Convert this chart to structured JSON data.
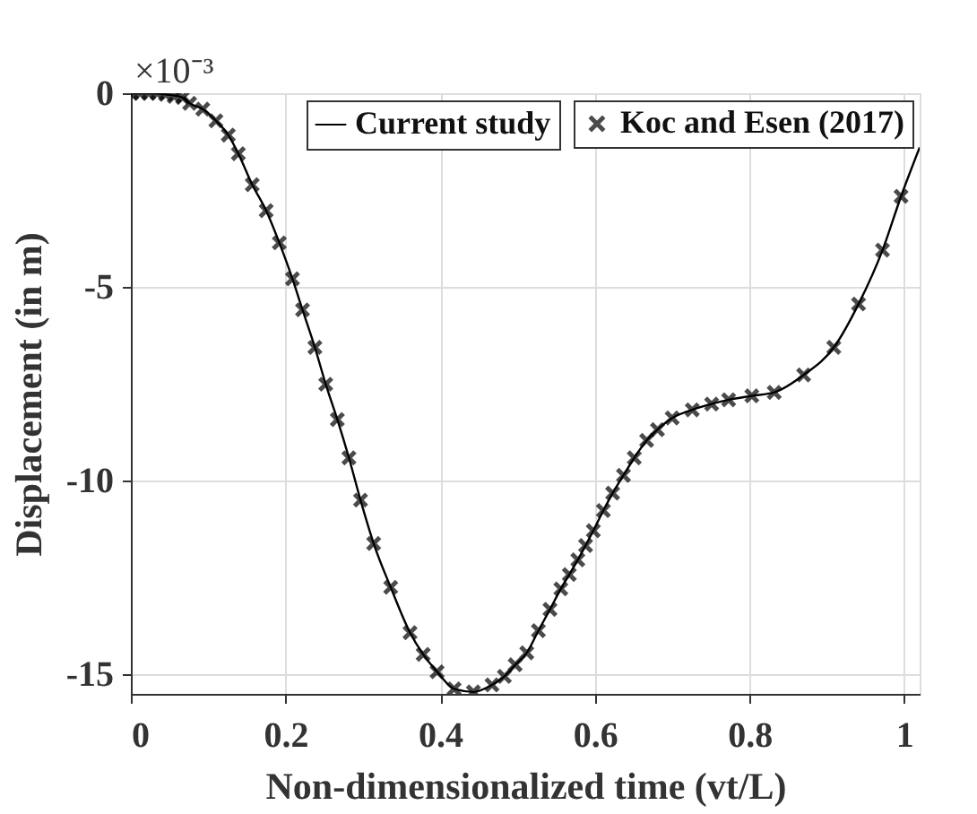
{
  "chart_data": {
    "type": "line",
    "xlabel": "Non-dimensionalized time (vt/L)",
    "ylabel": "Displacement (in m)",
    "annotations": [
      "×10⁻³"
    ],
    "xlim": [
      0,
      1.02
    ],
    "xticks": [
      0,
      0.2,
      0.4,
      0.6,
      0.8,
      1
    ],
    "ylim": [
      -15.5,
      0
    ],
    "yticks": [
      0,
      -5,
      -10,
      -15
    ],
    "grid": true,
    "legend": "top right",
    "series": [
      {
        "name": "Current study",
        "color": "#000000",
        "line_style": "solid",
        "marker": "none",
        "x": [
          0,
          0.023,
          0.045,
          0.067,
          0.076,
          0.093,
          0.11,
          0.126,
          0.139,
          0.157,
          0.175,
          0.192,
          0.209,
          0.222,
          0.238,
          0.252,
          0.267,
          0.282,
          0.297,
          0.314,
          0.336,
          0.361,
          0.378,
          0.396,
          0.418,
          0.443,
          0.467,
          0.483,
          0.497,
          0.512,
          0.527,
          0.542,
          0.556,
          0.567,
          0.578,
          0.588,
          0.598,
          0.611,
          0.623,
          0.637,
          0.651,
          0.667,
          0.681,
          0.7,
          0.726,
          0.751,
          0.773,
          0.803,
          0.832,
          0.87,
          0.909,
          0.941,
          0.972,
          0.996,
          1.02
        ],
        "values": [
          0,
          0,
          -0.03,
          -0.11,
          -0.26,
          -0.41,
          -0.71,
          -1.08,
          -1.56,
          -2.36,
          -3.03,
          -3.86,
          -4.79,
          -5.59,
          -6.56,
          -7.51,
          -8.42,
          -9.41,
          -10.5,
          -11.62,
          -12.75,
          -13.92,
          -14.48,
          -14.93,
          -15.37,
          -15.45,
          -15.27,
          -15.05,
          -14.75,
          -14.44,
          -13.87,
          -13.32,
          -12.79,
          -12.42,
          -12.04,
          -11.67,
          -11.29,
          -10.77,
          -10.32,
          -9.86,
          -9.41,
          -8.96,
          -8.68,
          -8.38,
          -8.17,
          -8.02,
          -7.91,
          -7.81,
          -7.72,
          -7.27,
          -6.56,
          -5.44,
          -4.05,
          -2.66,
          -1.4
        ]
      },
      {
        "name": "Koc and Esen (2017)",
        "type": "scatter",
        "color": "#000000",
        "marker": "cross",
        "x": [
          0.001,
          0.012,
          0.023,
          0.034,
          0.045,
          0.056,
          0.067,
          0.076,
          0.093,
          0.11,
          0.126,
          0.139,
          0.157,
          0.175,
          0.192,
          0.209,
          0.222,
          0.238,
          0.252,
          0.267,
          0.282,
          0.297,
          0.314,
          0.336,
          0.361,
          0.378,
          0.396,
          0.418,
          0.443,
          0.467,
          0.483,
          0.497,
          0.512,
          0.527,
          0.542,
          0.556,
          0.567,
          0.578,
          0.588,
          0.598,
          0.611,
          0.623,
          0.637,
          0.651,
          0.667,
          0.681,
          0.7,
          0.726,
          0.751,
          0.773,
          0.803,
          0.832,
          0.87,
          0.909,
          0.941,
          0.972,
          0.996
        ],
        "values": [
          0,
          0,
          0,
          0,
          -0.03,
          -0.08,
          -0.11,
          -0.26,
          -0.41,
          -0.71,
          -1.08,
          -1.56,
          -2.36,
          -3.03,
          -3.86,
          -4.79,
          -5.59,
          -6.56,
          -7.51,
          -8.42,
          -9.41,
          -10.5,
          -11.62,
          -12.75,
          -13.92,
          -14.48,
          -14.93,
          -15.37,
          -15.45,
          -15.27,
          -15.05,
          -14.75,
          -14.44,
          -13.87,
          -13.32,
          -12.79,
          -12.42,
          -12.04,
          -11.67,
          -11.29,
          -10.77,
          -10.32,
          -9.86,
          -9.41,
          -8.96,
          -8.68,
          -8.38,
          -8.17,
          -8.02,
          -7.91,
          -7.81,
          -7.72,
          -7.27,
          -6.56,
          -5.44,
          -4.05,
          -2.66
        ]
      }
    ]
  }
}
